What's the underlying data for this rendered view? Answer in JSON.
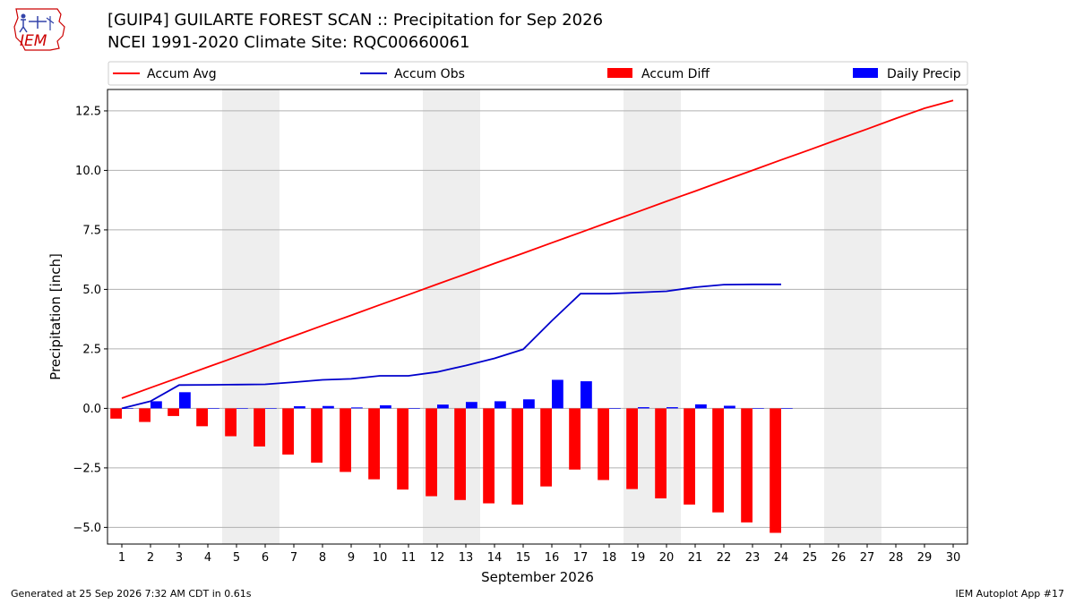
{
  "header": {
    "title": "[GUIP4] GUILARTE FOREST SCAN :: Precipitation for Sep 2026",
    "subtitle": "NCEI 1991-2020 Climate Site: RQC00660061",
    "logo_text": "IEM"
  },
  "footer": {
    "generated": "Generated at 25 Sep 2026 7:32 AM CDT in 0.61s",
    "app": "IEM Autoplot App #17"
  },
  "colors": {
    "accum_avg": "#ff0000",
    "accum_obs": "#0000cc",
    "accum_diff": "#ff0000",
    "daily_precip": "#0000ff",
    "weekend_shade": "#eeeeee"
  },
  "chart_data": {
    "type": "bar",
    "xlabel": "September 2026",
    "ylabel": "Precipitation [inch]",
    "xlim": [
      0.5,
      30.5
    ],
    "ylim": [
      -5.7,
      13.4
    ],
    "yticks": [
      -5.0,
      -2.5,
      0.0,
      2.5,
      5.0,
      7.5,
      10.0,
      12.5
    ],
    "ytick_labels": [
      "−5.0",
      "−2.5",
      "0.0",
      "2.5",
      "5.0",
      "7.5",
      "10.0",
      "12.5"
    ],
    "xticks": [
      1,
      2,
      3,
      4,
      5,
      6,
      7,
      8,
      9,
      10,
      11,
      12,
      13,
      14,
      15,
      16,
      17,
      18,
      19,
      20,
      21,
      22,
      23,
      24,
      25,
      26,
      27,
      28,
      29,
      30
    ],
    "grid": "horizontal",
    "legend_position": "top",
    "shaded_days": [
      [
        5,
        6
      ],
      [
        12,
        13
      ],
      [
        19,
        20
      ],
      [
        26,
        27
      ]
    ],
    "series": [
      {
        "name": "Accum Avg",
        "kind": "line",
        "x": [
          1,
          2,
          3,
          4,
          5,
          6,
          7,
          8,
          9,
          10,
          11,
          12,
          13,
          14,
          15,
          16,
          17,
          18,
          19,
          20,
          21,
          22,
          23,
          24,
          25,
          26,
          27,
          28,
          29,
          30
        ],
        "values": [
          0.43,
          0.87,
          1.3,
          1.74,
          2.17,
          2.61,
          3.04,
          3.48,
          3.91,
          4.35,
          4.78,
          5.22,
          5.65,
          6.09,
          6.52,
          6.96,
          7.39,
          7.83,
          8.26,
          8.7,
          9.13,
          9.57,
          10.0,
          10.44,
          10.87,
          11.31,
          11.74,
          12.18,
          12.61,
          12.94
        ]
      },
      {
        "name": "Accum Obs",
        "kind": "line",
        "x": [
          1,
          2,
          3,
          4,
          5,
          6,
          7,
          8,
          9,
          10,
          11,
          12,
          13,
          14,
          15,
          16,
          17,
          18,
          19,
          20,
          21,
          22,
          23,
          24
        ],
        "values": [
          0.0,
          0.3,
          0.98,
          0.99,
          1.0,
          1.01,
          1.1,
          1.2,
          1.24,
          1.37,
          1.37,
          1.53,
          1.8,
          2.1,
          2.48,
          3.68,
          4.82,
          4.82,
          4.87,
          4.92,
          5.09,
          5.2,
          5.21,
          5.21
        ]
      },
      {
        "name": "Accum Diff",
        "kind": "bar",
        "x": [
          1,
          2,
          3,
          4,
          5,
          6,
          7,
          8,
          9,
          10,
          11,
          12,
          13,
          14,
          15,
          16,
          17,
          18,
          19,
          20,
          21,
          22,
          23,
          24
        ],
        "values": [
          -0.43,
          -0.57,
          -0.32,
          -0.75,
          -1.17,
          -1.6,
          -1.94,
          -2.28,
          -2.67,
          -2.98,
          -3.41,
          -3.69,
          -3.85,
          -3.99,
          -4.04,
          -3.28,
          -2.57,
          -3.01,
          -3.39,
          -3.78,
          -4.04,
          -4.37,
          -4.79,
          -5.23
        ]
      },
      {
        "name": "Daily Precip",
        "kind": "bar",
        "x": [
          1,
          2,
          3,
          4,
          5,
          6,
          7,
          8,
          9,
          10,
          11,
          12,
          13,
          14,
          15,
          16,
          17,
          18,
          19,
          20,
          21,
          22,
          23,
          24
        ],
        "values": [
          0.0,
          0.3,
          0.68,
          0.01,
          0.01,
          0.01,
          0.09,
          0.1,
          0.04,
          0.13,
          0.0,
          0.16,
          0.27,
          0.3,
          0.38,
          1.2,
          1.14,
          0.0,
          0.05,
          0.05,
          0.17,
          0.11,
          0.01,
          0.0
        ]
      }
    ]
  }
}
